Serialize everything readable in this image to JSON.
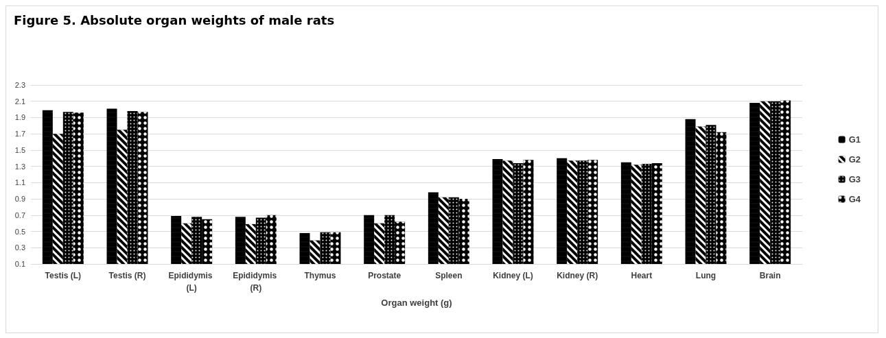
{
  "chart_data": {
    "type": "bar",
    "title": "Figure 5. Absolute organ weights of male rats",
    "xlabel": "Organ weight (g)",
    "categories": [
      "Testis (L)",
      "Testis (R)",
      "Epididymis (L)",
      "Epididymis (R)",
      "Thymus",
      "Prostate",
      "Spleen",
      "Kidney (L)",
      "Kidney (R)",
      "Heart",
      "Lung",
      "Brain"
    ],
    "series": [
      {
        "name": "G1",
        "color": "#000000",
        "values": [
          1.99,
          2.01,
          0.69,
          0.68,
          0.48,
          0.7,
          0.98,
          1.39,
          1.4,
          1.35,
          1.88,
          2.08
        ]
      },
      {
        "name": "G2",
        "color": "#000000",
        "values": [
          1.7,
          1.75,
          0.6,
          0.59,
          0.39,
          0.6,
          0.92,
          1.37,
          1.37,
          1.32,
          1.79,
          2.1
        ]
      },
      {
        "name": "G3",
        "color": "#000000",
        "values": [
          1.97,
          1.98,
          0.68,
          0.67,
          0.49,
          0.7,
          0.92,
          1.34,
          1.37,
          1.33,
          1.81,
          2.1
        ]
      },
      {
        "name": "G4",
        "color": "#000000",
        "values": [
          1.96,
          1.97,
          0.65,
          0.7,
          0.49,
          0.62,
          0.9,
          1.38,
          1.38,
          1.34,
          1.72,
          2.11
        ]
      }
    ],
    "ylim": [
      0.1,
      2.3
    ],
    "yticks": [
      0.1,
      0.3,
      0.5,
      0.7,
      0.9,
      1.1,
      1.3,
      1.5,
      1.7,
      1.9,
      2.1,
      2.3
    ],
    "grid": "y",
    "legend": "right"
  }
}
